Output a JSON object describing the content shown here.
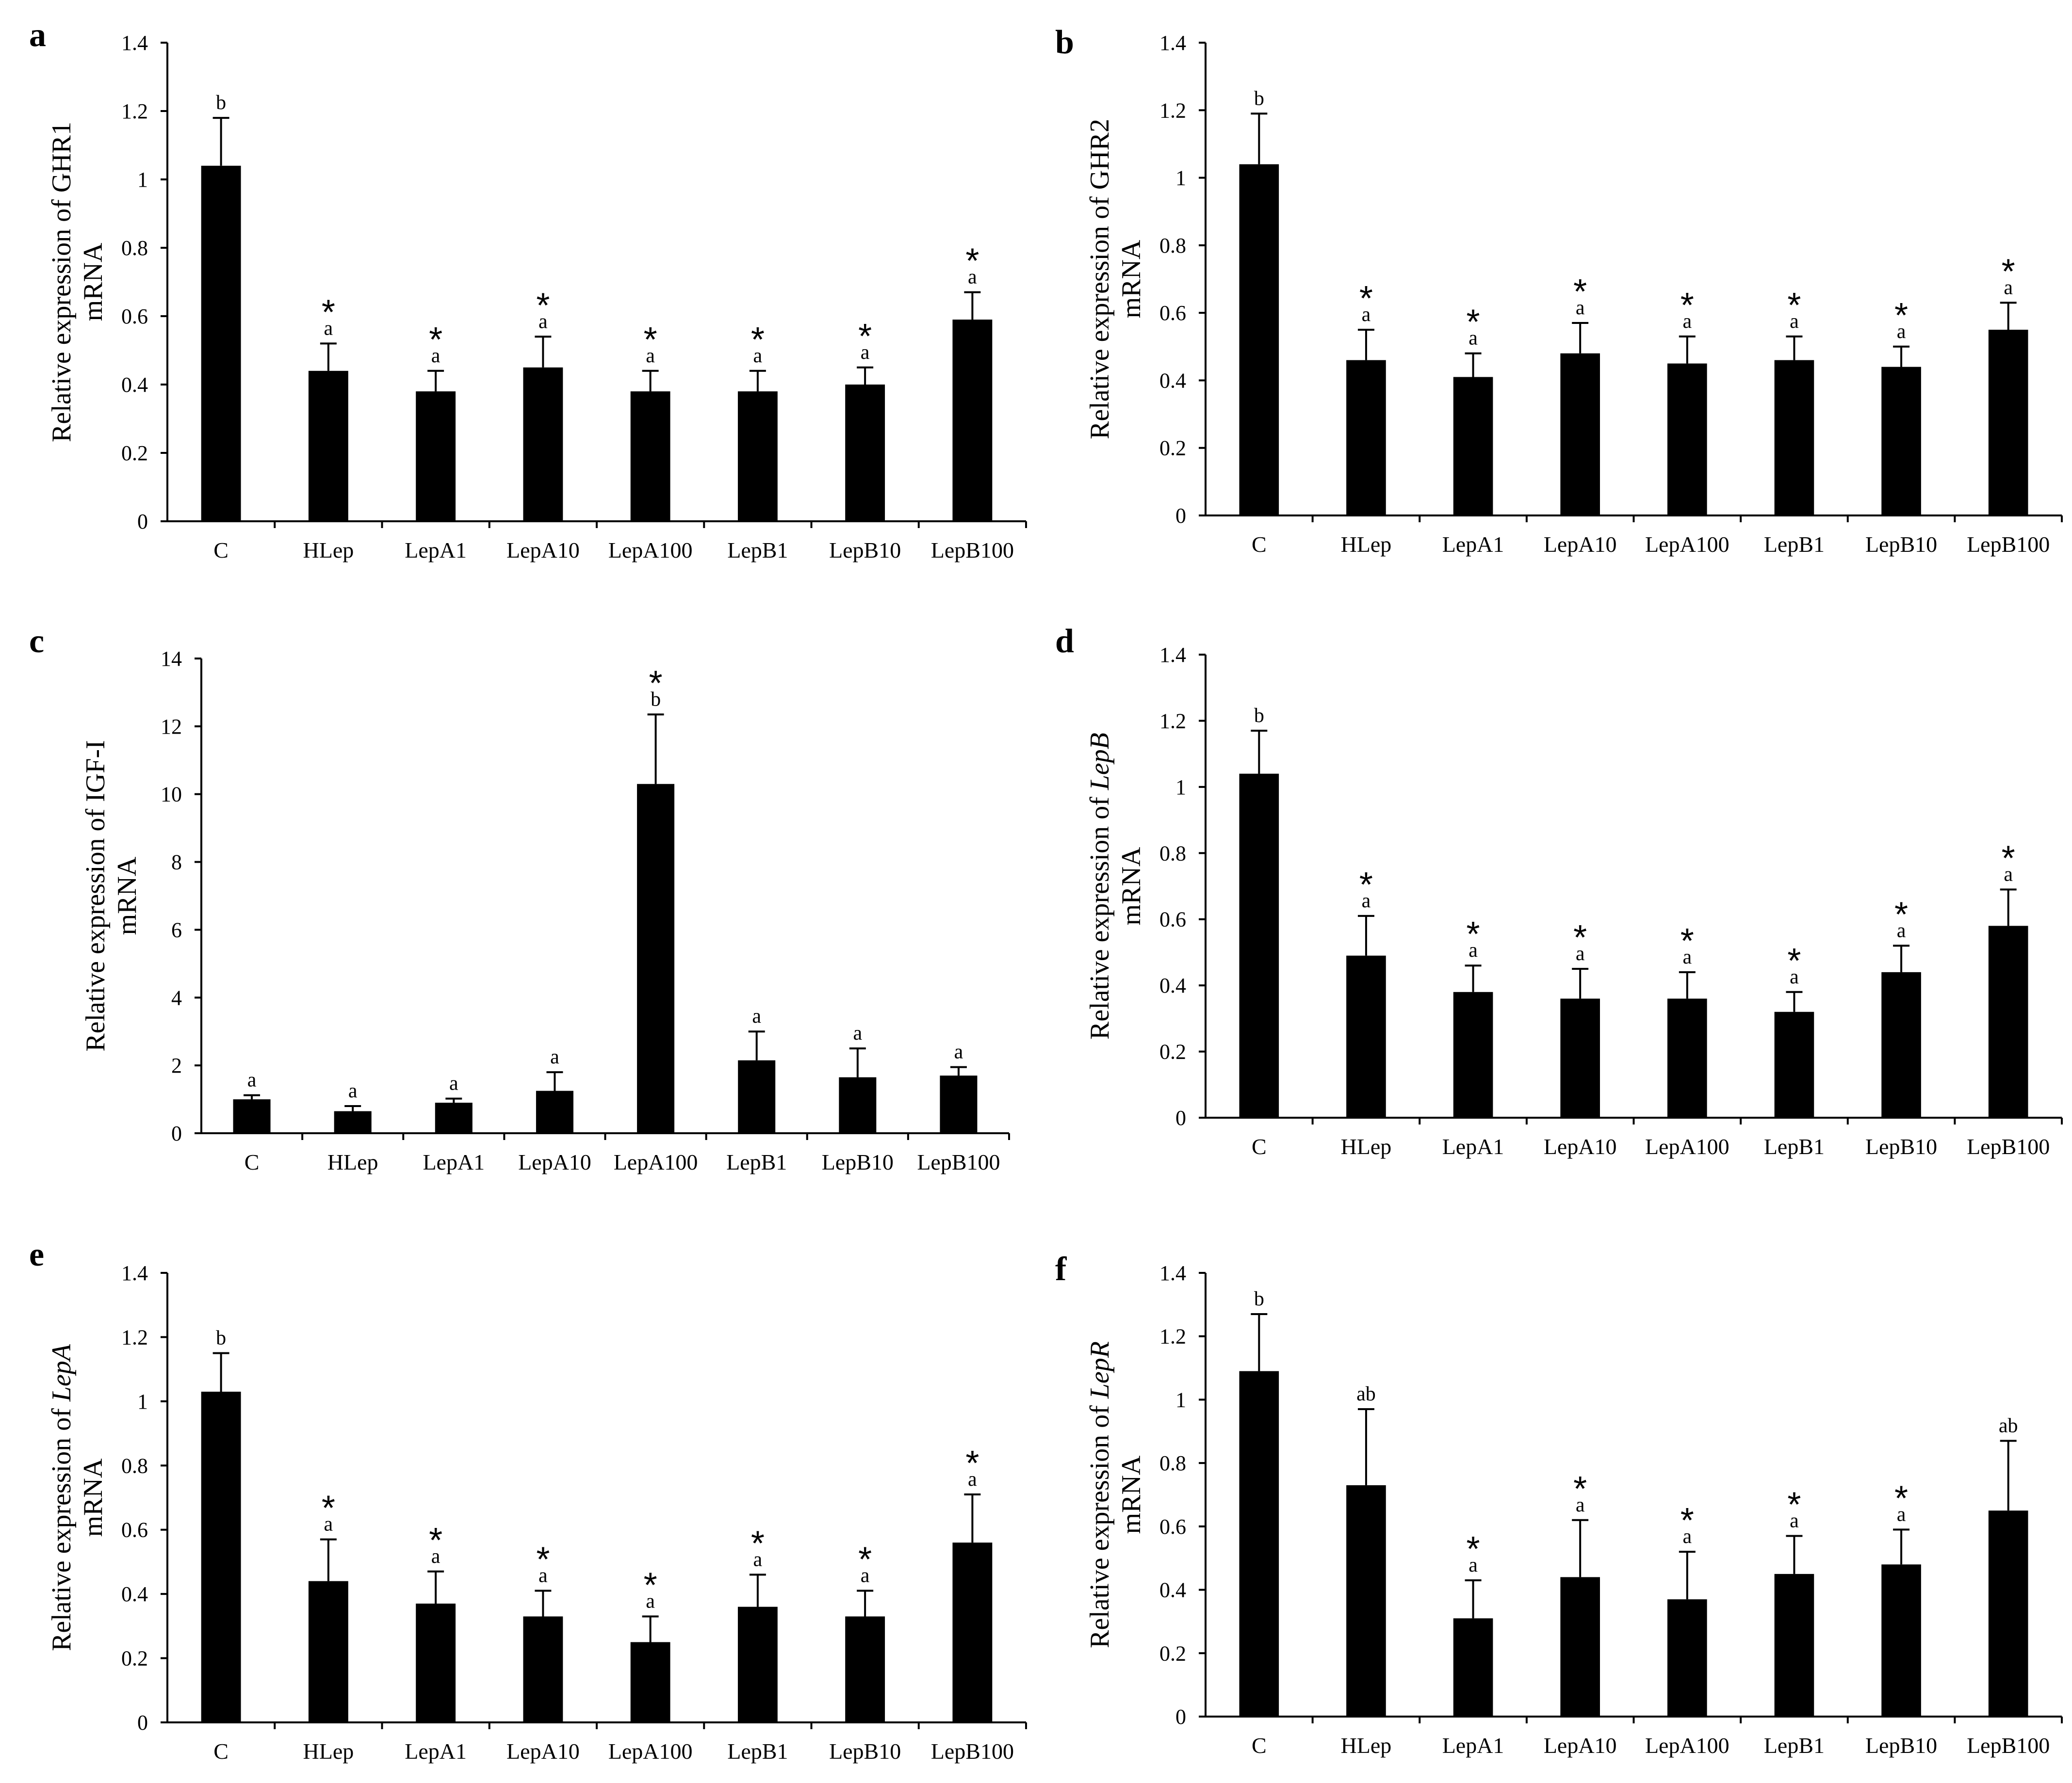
{
  "chart_data": [
    {
      "panel": "a",
      "type": "bar",
      "ylabel_line1": "Relative  expression of  GHR1",
      "ylabel_line2": "mRNA",
      "ylabel_italic": "",
      "ylim": [
        0,
        1.4
      ],
      "yticks": [
        "0",
        "0.2",
        "0.4",
        "0.6",
        "0.8",
        "1",
        "1.2",
        "1.4"
      ],
      "categories": [
        "C",
        "HLep",
        "LepA1",
        "LepA10",
        "LepA100",
        "LepB1",
        "LepB10",
        "LepB100"
      ],
      "values": [
        1.04,
        0.44,
        0.38,
        0.45,
        0.38,
        0.38,
        0.4,
        0.59
      ],
      "errors": [
        0.14,
        0.08,
        0.06,
        0.09,
        0.06,
        0.06,
        0.05,
        0.08
      ],
      "letters": [
        "b",
        "a",
        "a",
        "a",
        "a",
        "a",
        "a",
        "a"
      ],
      "stars": [
        "",
        "*",
        "*",
        "*",
        "*",
        "*",
        "*",
        "*"
      ]
    },
    {
      "panel": "b",
      "type": "bar",
      "ylabel_line1": "Relative  expression of  GHR2",
      "ylabel_line2": "mRNA",
      "ylabel_italic": "",
      "ylim": [
        0,
        1.4
      ],
      "yticks": [
        "0",
        "0.2",
        "0.4",
        "0.6",
        "0.8",
        "1",
        "1.2",
        "1.4"
      ],
      "categories": [
        "C",
        "HLep",
        "LepA1",
        "LepA10",
        "LepA100",
        "LepB1",
        "LepB10",
        "LepB100"
      ],
      "values": [
        1.04,
        0.46,
        0.41,
        0.48,
        0.45,
        0.46,
        0.44,
        0.55
      ],
      "errors": [
        0.15,
        0.09,
        0.07,
        0.09,
        0.08,
        0.07,
        0.06,
        0.08
      ],
      "letters": [
        "b",
        "a",
        "a",
        "a",
        "a",
        "a",
        "a",
        "a"
      ],
      "stars": [
        "",
        "*",
        "*",
        "*",
        "*",
        "*",
        "*",
        "*"
      ]
    },
    {
      "panel": "c",
      "type": "bar",
      "ylabel_line1": "Relative  expression  of  IGF-I",
      "ylabel_line2": "mRNA",
      "ylabel_italic": "",
      "ylim": [
        0,
        14
      ],
      "yticks": [
        "0",
        "2",
        "4",
        "6",
        "8",
        "10",
        "12",
        "14"
      ],
      "categories": [
        "C",
        "HLep",
        "LepA1",
        "LepA10",
        "LepA100",
        "LepB1",
        "LepB10",
        "LepB100"
      ],
      "values": [
        1.0,
        0.65,
        0.9,
        1.25,
        10.3,
        2.15,
        1.65,
        1.7
      ],
      "errors": [
        0.12,
        0.15,
        0.12,
        0.55,
        2.05,
        0.85,
        0.85,
        0.25
      ],
      "letters": [
        "a",
        "a",
        "a",
        "a",
        "b",
        "a",
        "a",
        "a"
      ],
      "stars": [
        "",
        "",
        "",
        "",
        "*",
        "",
        "",
        ""
      ]
    },
    {
      "panel": "d",
      "type": "bar",
      "ylabel_line1": "Relative  expression of ",
      "ylabel_line2": "mRNA",
      "ylabel_italic": "LepB",
      "ylim": [
        0,
        1.4
      ],
      "yticks": [
        "0",
        "0.2",
        "0.4",
        "0.6",
        "0.8",
        "1",
        "1.2",
        "1.4"
      ],
      "categories": [
        "C",
        "HLep",
        "LepA1",
        "LepA10",
        "LepA100",
        "LepB1",
        "LepB10",
        "LepB100"
      ],
      "values": [
        1.04,
        0.49,
        0.38,
        0.36,
        0.36,
        0.32,
        0.44,
        0.58
      ],
      "errors": [
        0.13,
        0.12,
        0.08,
        0.09,
        0.08,
        0.06,
        0.08,
        0.11
      ],
      "letters": [
        "b",
        "a",
        "a",
        "a",
        "a",
        "a",
        "a",
        "a"
      ],
      "stars": [
        "",
        "*",
        "*",
        "*",
        "*",
        "*",
        "*",
        "*"
      ]
    },
    {
      "panel": "e",
      "type": "bar",
      "ylabel_line1": "Relative  expression of ",
      "ylabel_line2": "mRNA",
      "ylabel_italic": "LepA",
      "ylim": [
        0,
        1.4
      ],
      "yticks": [
        "0",
        "0.2",
        "0.4",
        "0.6",
        "0.8",
        "1",
        "1.2",
        "1.4"
      ],
      "categories": [
        "C",
        "HLep",
        "LepA1",
        "LepA10",
        "LepA100",
        "LepB1",
        "LepB10",
        "LepB100"
      ],
      "values": [
        1.03,
        0.44,
        0.37,
        0.33,
        0.25,
        0.36,
        0.33,
        0.56
      ],
      "errors": [
        0.12,
        0.13,
        0.1,
        0.08,
        0.08,
        0.1,
        0.08,
        0.15
      ],
      "letters": [
        "b",
        "a",
        "a",
        "a",
        "a",
        "a",
        "a",
        "a"
      ],
      "stars": [
        "",
        "*",
        "*",
        "*",
        "*",
        "*",
        "*",
        "*"
      ]
    },
    {
      "panel": "f",
      "type": "bar",
      "ylabel_line1": "Relative  expression of ",
      "ylabel_line2": "mRNA",
      "ylabel_italic": "LepR",
      "ylim": [
        0,
        1.4
      ],
      "yticks": [
        "0",
        "0.2",
        "0.4",
        "0.6",
        "0.8",
        "1",
        "1.2",
        "1.4"
      ],
      "categories": [
        "C",
        "HLep",
        "LepA1",
        "LepA10",
        "LepA100",
        "LepB1",
        "LepB10",
        "LepB100"
      ],
      "values": [
        1.09,
        0.73,
        0.31,
        0.44,
        0.37,
        0.45,
        0.48,
        0.65
      ],
      "errors": [
        0.18,
        0.24,
        0.12,
        0.18,
        0.15,
        0.12,
        0.11,
        0.22
      ],
      "letters": [
        "b",
        "ab",
        "a",
        "a",
        "a",
        "a",
        "a",
        "ab"
      ],
      "stars": [
        "",
        "",
        "*",
        "*",
        "*",
        "*",
        "*",
        ""
      ]
    }
  ]
}
